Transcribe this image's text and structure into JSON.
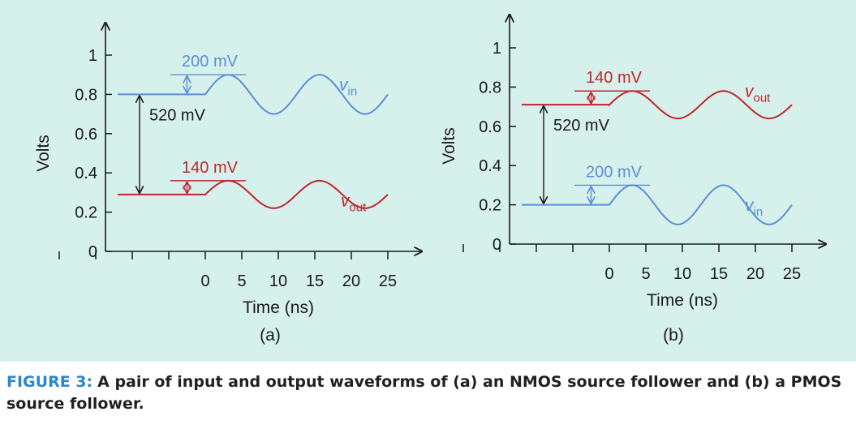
{
  "colors": {
    "background": "#d6f0ec",
    "vin": "#5b8fd6",
    "vout": "#c0262d",
    "axis": "#1a1a1a",
    "caption_label": "#2e86c8",
    "caption_text": "#231f20"
  },
  "caption": {
    "label": "FIGURE 3:",
    "text": "A pair of input and output waveforms of (a) an NMOS source follower and (b) a PMOS source follower."
  },
  "chart_data": [
    {
      "type": "line",
      "panel_label": "(a)",
      "xlabel": "Time (ns)",
      "ylabel": "Volts",
      "x_ticks": [
        0,
        5,
        10,
        15,
        20,
        25
      ],
      "y_ticks": [
        0,
        0.2,
        0.4,
        0.6,
        0.8,
        1
      ],
      "y_tick_labels": [
        "0",
        "0.2",
        "0.4",
        "0.6",
        "0.8",
        "1"
      ],
      "xlim": [
        -25,
        27
      ],
      "ylim": [
        0,
        1.12
      ],
      "series": [
        {
          "name": "v",
          "subscript": "in",
          "dc": 0.8,
          "amplitude": 0.1,
          "period": 12.5,
          "start": -12,
          "end": 25
        },
        {
          "name": "v",
          "subscript": "out",
          "dc": 0.29,
          "amplitude": 0.07,
          "period": 12.5,
          "start": -12,
          "end": 25
        }
      ],
      "annotations": {
        "vin_swing": "200 mV",
        "vout_swing": "140 mV",
        "dc_shift": "520 mV"
      }
    },
    {
      "type": "line",
      "panel_label": "(b)",
      "xlabel": "Time (ns)",
      "ylabel": "Volts",
      "x_ticks": [
        0,
        5,
        10,
        15,
        20,
        25
      ],
      "y_ticks": [
        0,
        0.2,
        0.4,
        0.6,
        0.8,
        1
      ],
      "y_tick_labels": [
        "0",
        "0.2",
        "0.4",
        "0.6",
        "0.8",
        "1"
      ],
      "xlim": [
        -25,
        27
      ],
      "ylim": [
        0,
        1.12
      ],
      "series": [
        {
          "name": "v",
          "subscript": "out",
          "dc": 0.71,
          "amplitude": 0.07,
          "period": 12.5,
          "start": -12,
          "end": 25
        },
        {
          "name": "v",
          "subscript": "in",
          "dc": 0.2,
          "amplitude": 0.1,
          "period": 12.5,
          "start": -12,
          "end": 25
        }
      ],
      "annotations": {
        "vout_swing": "140 mV",
        "vin_swing": "200 mV",
        "dc_shift": "520 mV"
      }
    }
  ]
}
